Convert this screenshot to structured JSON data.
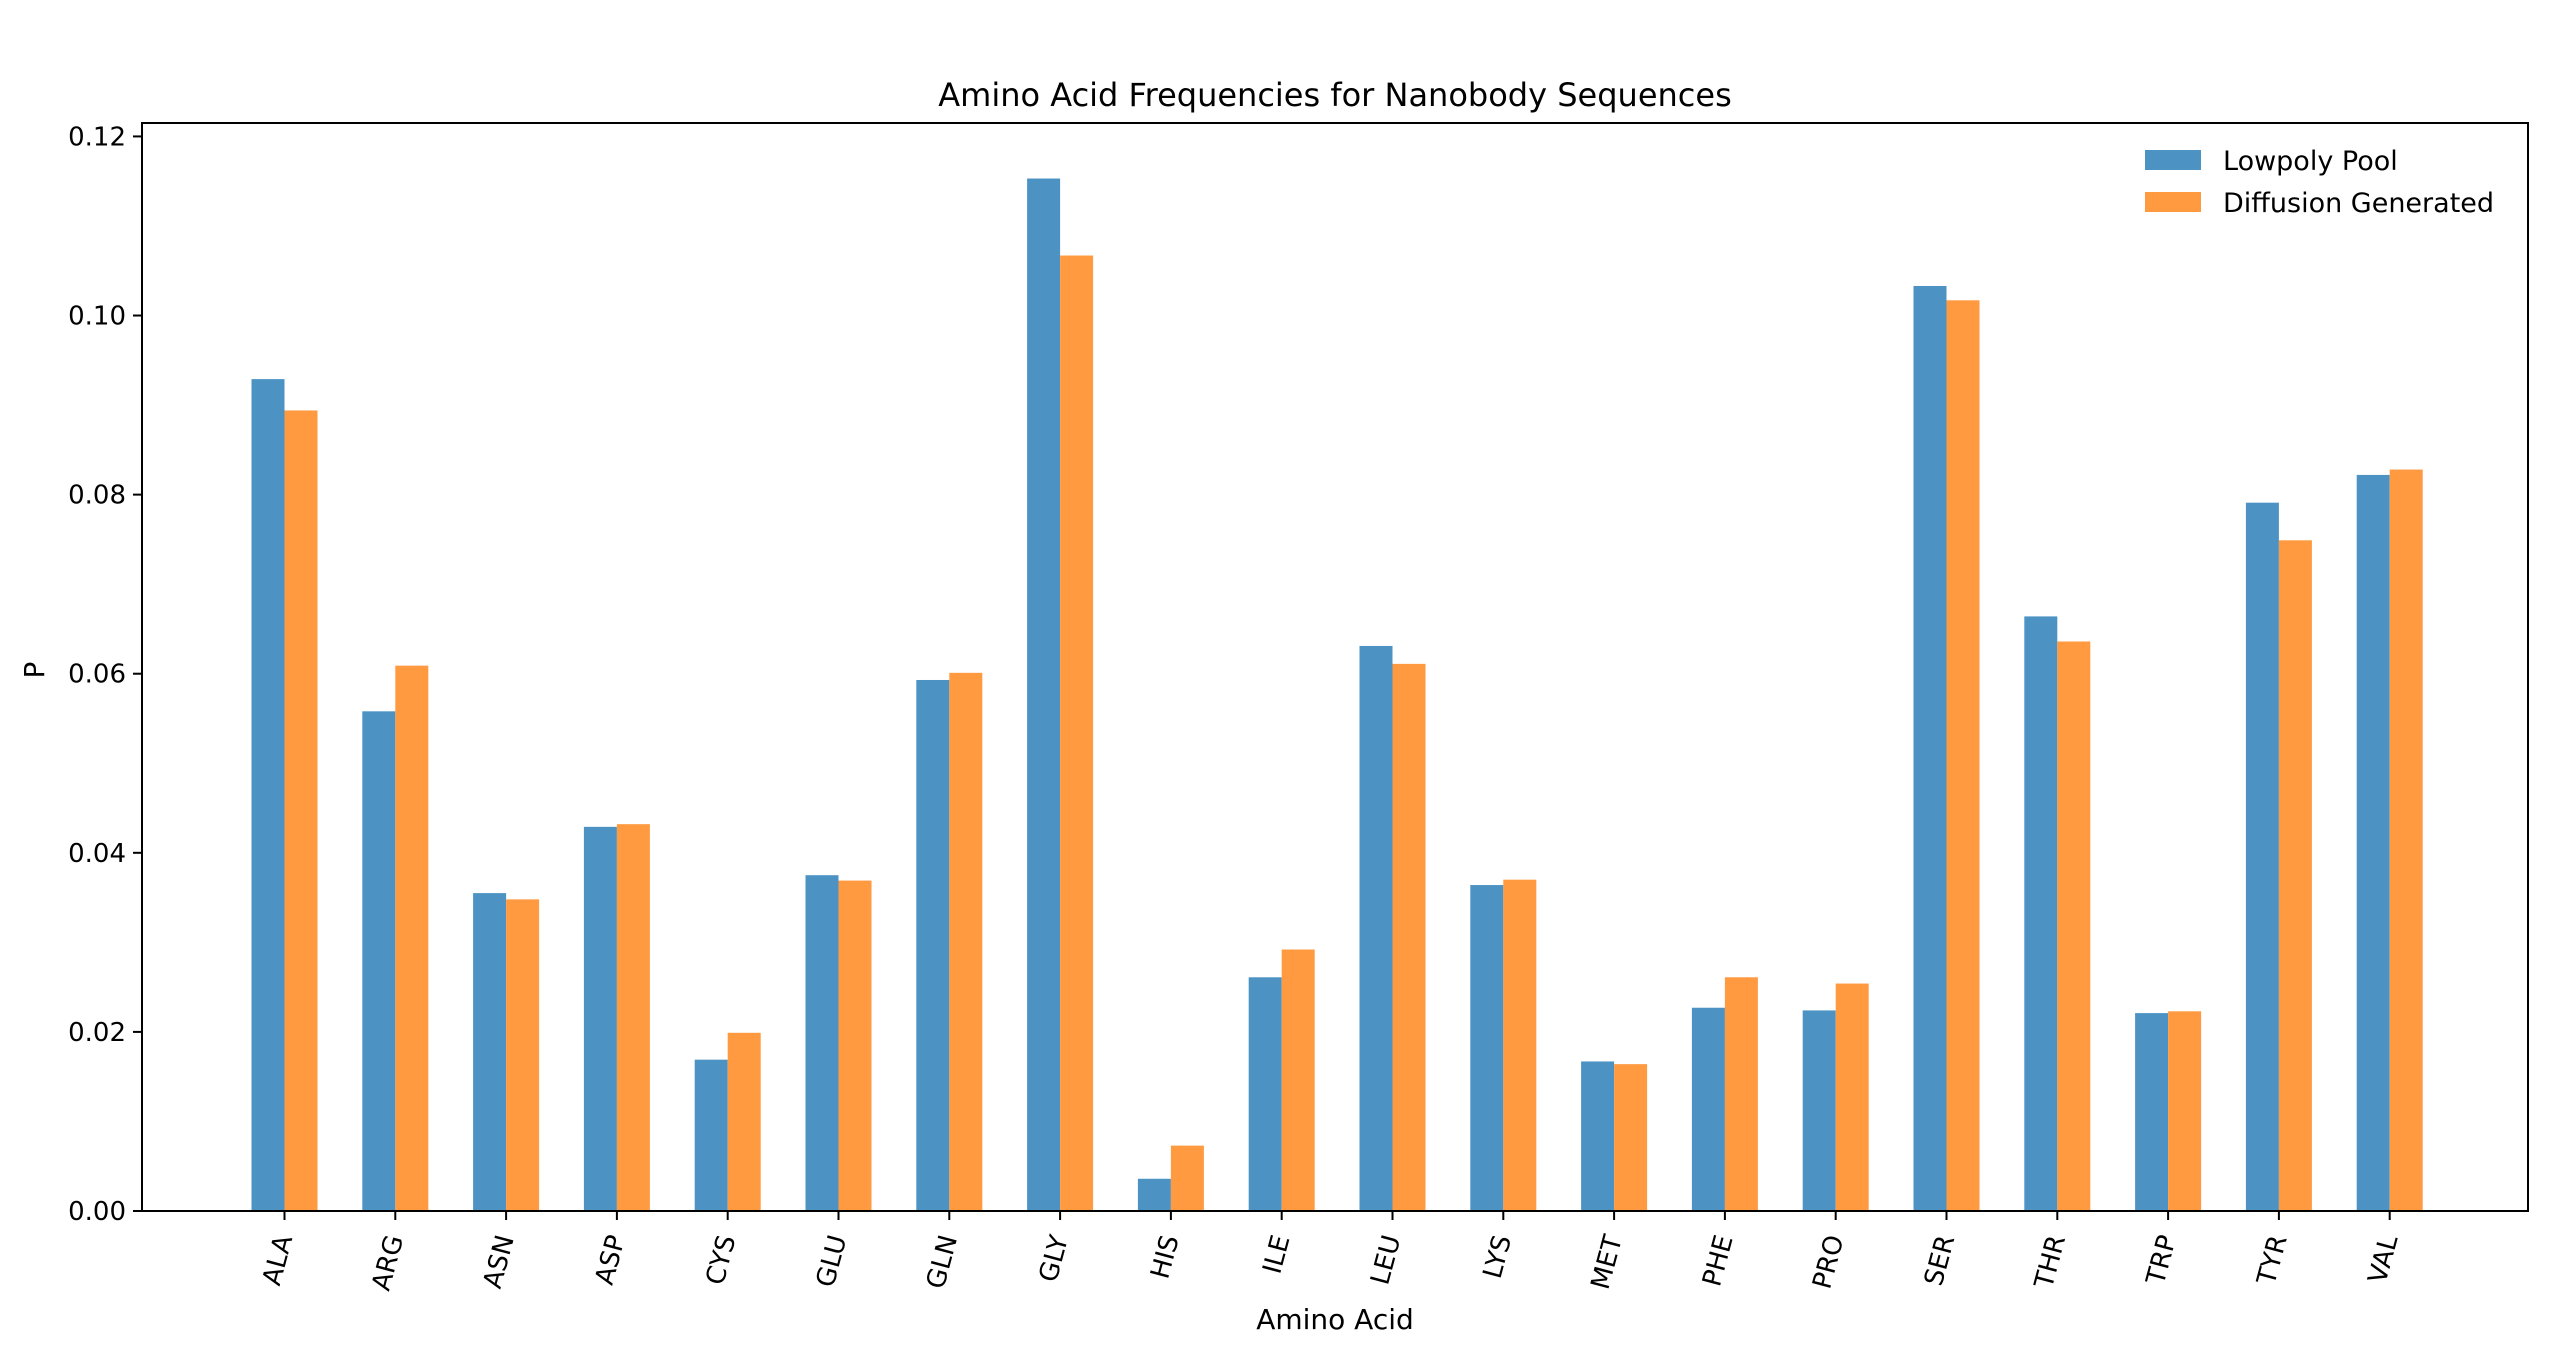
{
  "chart_data": {
    "type": "bar",
    "title": "Amino Acid Frequencies for Nanobody Sequences",
    "xlabel": "Amino Acid",
    "ylabel": "P",
    "ylim": [
      0,
      0.1215
    ],
    "yticks": [
      "0.00",
      "0.02",
      "0.04",
      "0.06",
      "0.08",
      "0.10",
      "0.12"
    ],
    "grid": false,
    "legend_position": "top-right",
    "categories": [
      "ALA",
      "ARG",
      "ASN",
      "ASP",
      "CYS",
      "GLU",
      "GLN",
      "GLY",
      "HIS",
      "ILE",
      "LEU",
      "LYS",
      "MET",
      "PHE",
      "PRO",
      "SER",
      "THR",
      "TRP",
      "TYR",
      "VAL"
    ],
    "series": [
      {
        "name": "Lowpoly Pool",
        "color": "#4c93c4",
        "values": [
          0.0929,
          0.0558,
          0.0355,
          0.0429,
          0.0169,
          0.0375,
          0.0593,
          0.1153,
          0.0036,
          0.0261,
          0.0631,
          0.0364,
          0.0167,
          0.0227,
          0.0224,
          0.1033,
          0.0664,
          0.0221,
          0.0791,
          0.0822
        ]
      },
      {
        "name": "Diffusion Generated",
        "color": "#ff9a40",
        "values": [
          0.0894,
          0.0609,
          0.0348,
          0.0432,
          0.0199,
          0.0369,
          0.0601,
          0.1067,
          0.0073,
          0.0292,
          0.0611,
          0.037,
          0.0164,
          0.0261,
          0.0254,
          0.1017,
          0.0636,
          0.0223,
          0.0749,
          0.0828
        ]
      }
    ]
  }
}
